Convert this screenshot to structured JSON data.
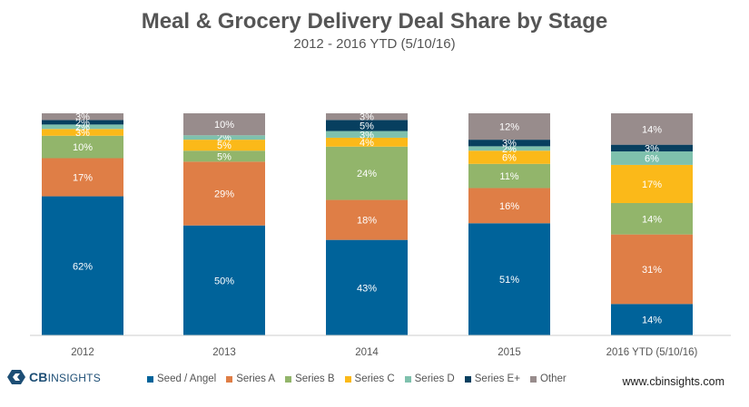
{
  "header": {
    "title": "Meal & Grocery Delivery Deal Share by Stage",
    "subtitle": "2012 - 2016 YTD (5/10/16)"
  },
  "chart_data": {
    "type": "bar",
    "stacked": true,
    "percent_stacked": true,
    "title": "Meal & Grocery Delivery Deal Share by Stage",
    "subtitle": "2012 - 2016 YTD (5/10/16)",
    "xlabel": "",
    "ylabel": "",
    "ylim": [
      0,
      100
    ],
    "legend_position": "bottom",
    "categories": [
      "2012",
      "2013",
      "2014",
      "2015",
      "2016 YTD (5/10/16)"
    ],
    "series": [
      {
        "name": "Seed / Angel",
        "color": "#00639a",
        "values": [
          62,
          50,
          43,
          51,
          14
        ]
      },
      {
        "name": "Series A",
        "color": "#df7e46",
        "values": [
          17,
          29,
          18,
          16,
          31
        ]
      },
      {
        "name": "Series B",
        "color": "#92b56b",
        "values": [
          10,
          5,
          24,
          11,
          14
        ]
      },
      {
        "name": "Series C",
        "color": "#fbb919",
        "values": [
          3,
          5,
          4,
          6,
          17
        ]
      },
      {
        "name": "Series D",
        "color": "#7fc1ad",
        "values": [
          2,
          2,
          3,
          2,
          6
        ]
      },
      {
        "name": "Series E+",
        "color": "#073f5f",
        "values": [
          2,
          0,
          5,
          3,
          3
        ]
      },
      {
        "name": "Other",
        "color": "#988c8c",
        "values": [
          3,
          10,
          3,
          12,
          14
        ]
      }
    ],
    "data_labels": [
      [
        "62%",
        "17%",
        "10%",
        "3%",
        "2%",
        "2%",
        "3%"
      ],
      [
        "50%",
        "29%",
        "5%",
        "5%",
        "2%",
        "",
        "10%"
      ],
      [
        "43%",
        "18%",
        "24%",
        "4%",
        "3%",
        "5%",
        "3%"
      ],
      [
        "51%",
        "16%",
        "11%",
        "6%",
        "2%",
        "3%",
        "12%"
      ],
      [
        "14%",
        "31%",
        "14%",
        "17%",
        "6%",
        "3%",
        "14%"
      ]
    ]
  },
  "footer": {
    "logo_text_bold": "CB",
    "logo_text_rest": "INSIGHTS",
    "website": "www.cbinsights.com"
  }
}
